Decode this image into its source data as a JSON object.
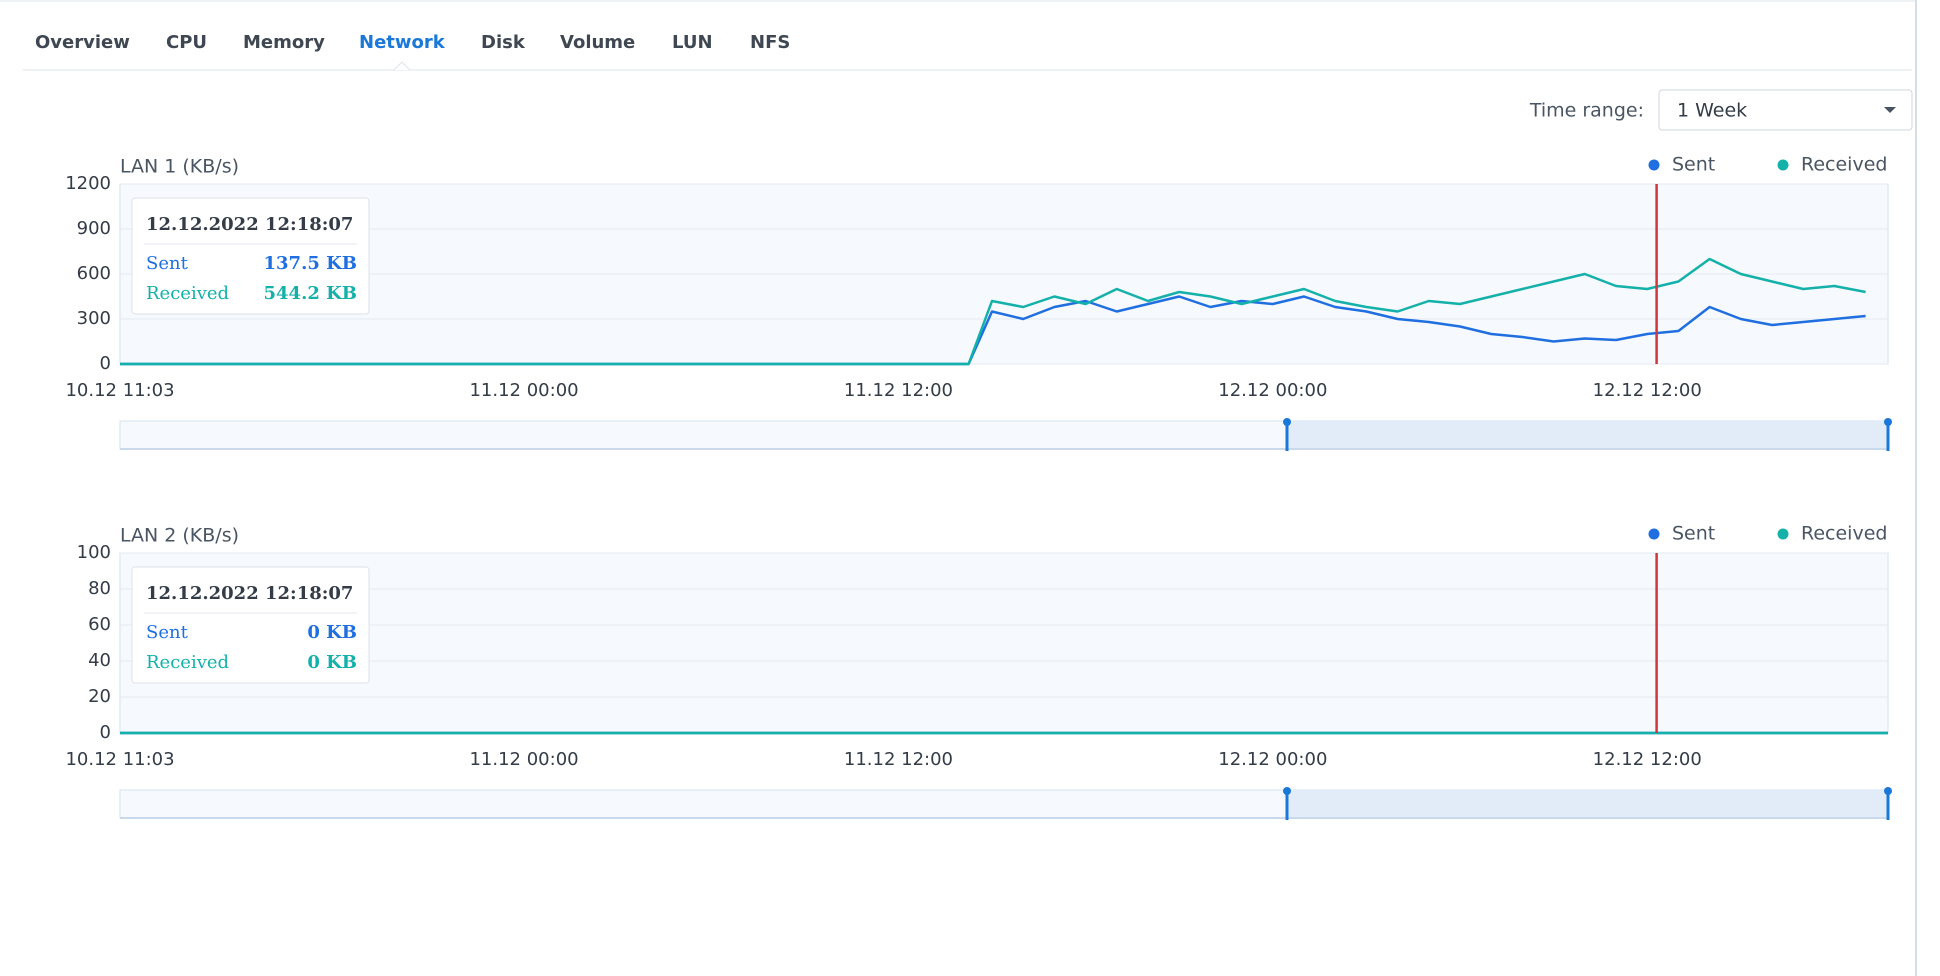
{
  "tabs": [
    "Overview",
    "CPU",
    "Memory",
    "Network",
    "Disk",
    "Volume",
    "LUN",
    "NFS"
  ],
  "active_tab": 3,
  "time_range": {
    "label": "Time range:",
    "value": "1 Week"
  },
  "chart_data": [
    {
      "type": "line",
      "title": "LAN 1 (KB/s)",
      "x": [
        "10.12 11:03",
        "11.12 14:15",
        "11.12 15:00",
        "11.12 16:00",
        "11.12 17:00",
        "11.12 18:00",
        "11.12 19:00",
        "11.12 20:00",
        "11.12 21:00",
        "11.12 22:00",
        "11.12 23:00",
        "12.12 00:00",
        "12.12 01:00",
        "12.12 02:00",
        "12.12 03:00",
        "12.12 04:00",
        "12.12 05:00",
        "12.12 06:00",
        "12.12 07:00",
        "12.12 08:00",
        "12.12 09:00",
        "12.12 10:00",
        "12.12 11:00",
        "12.12 12:00",
        "12.12 13:00",
        "12.12 14:00",
        "12.12 15:00",
        "12.12 16:00",
        "12.12 17:00",
        "12.12 18:00",
        "12.12 19:00"
      ],
      "series": [
        {
          "name": "Sent",
          "color": "#1f6fe0",
          "values": [
            0,
            0,
            350,
            300,
            380,
            420,
            350,
            400,
            450,
            380,
            420,
            400,
            450,
            380,
            350,
            300,
            280,
            250,
            200,
            180,
            150,
            170,
            160,
            200,
            220,
            380,
            300,
            260,
            280,
            300,
            320
          ]
        },
        {
          "name": "Received",
          "color": "#14b1aa",
          "values": [
            0,
            0,
            420,
            380,
            450,
            400,
            500,
            420,
            480,
            450,
            400,
            450,
            500,
            420,
            380,
            350,
            420,
            400,
            450,
            500,
            550,
            600,
            520,
            500,
            550,
            700,
            600,
            550,
            500,
            520,
            480
          ]
        }
      ],
      "xlim": [
        "10.12 11:03",
        "12.12 19:43"
      ],
      "xticks": [
        "10.12 11:03",
        "11.12 00:00",
        "11.12 12:00",
        "12.12 00:00",
        "12.12 12:00"
      ],
      "ylim": [
        0,
        1200
      ],
      "yticks": [
        0,
        300,
        600,
        900,
        1200
      ],
      "grid": true,
      "tooltip": {
        "title": "12.12.2022 12:18:07",
        "values": [
          "137.5 KB",
          "544.2 KB"
        ]
      }
    },
    {
      "type": "line",
      "title": "LAN 2 (KB/s)",
      "x": [
        "10.12 11:03",
        "12.12 19:43"
      ],
      "series": [
        {
          "name": "Sent",
          "color": "#1f6fe0",
          "values": [
            0,
            0
          ]
        },
        {
          "name": "Received",
          "color": "#14b1aa",
          "values": [
            0,
            0
          ]
        }
      ],
      "xlim": [
        "10.12 11:03",
        "12.12 19:43"
      ],
      "xticks": [
        "10.12 11:03",
        "11.12 00:00",
        "11.12 12:00",
        "12.12 00:00",
        "12.12 12:00"
      ],
      "ylim": [
        0,
        100
      ],
      "yticks": [
        0,
        20,
        40,
        60,
        80,
        100
      ],
      "grid": true,
      "tooltip": {
        "title": "12.12.2022 12:18:07",
        "values": [
          "0 KB",
          "0 KB"
        ]
      }
    }
  ]
}
